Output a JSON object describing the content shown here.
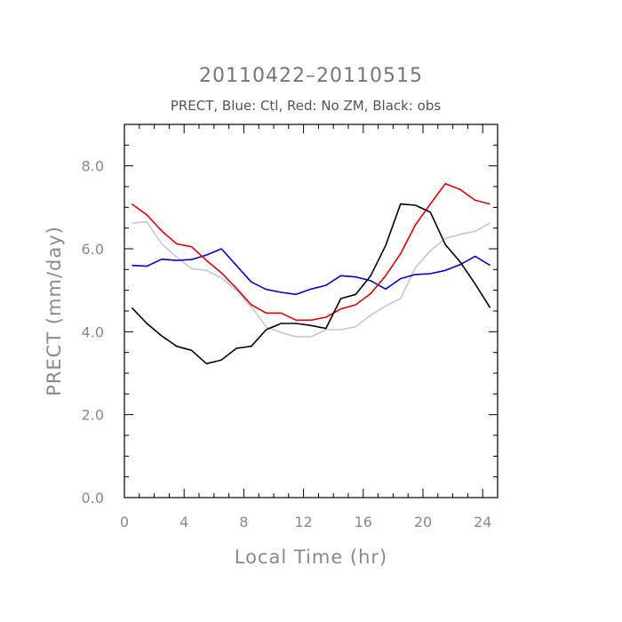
{
  "chart_data": {
    "type": "line",
    "title": "20110422–20110515",
    "subtitle": "PRECT, Blue: Ctl, Red: No ZM, Black: obs",
    "xlabel": "Local Time (hr)",
    "ylabel": "PRECT (mm/day)",
    "xlim": [
      0,
      25
    ],
    "ylim": [
      0,
      9
    ],
    "x_ticks": [
      0,
      4,
      8,
      12,
      16,
      20,
      24
    ],
    "x_tick_labels": [
      "0",
      "4",
      "8",
      "12",
      "16",
      "20",
      "24"
    ],
    "y_ticks": [
      0,
      2,
      4,
      6,
      8
    ],
    "y_tick_labels": [
      "0.0",
      "2.0",
      "4.0",
      "6.0",
      "8.0"
    ],
    "grid": false,
    "x": [
      0.5,
      1.5,
      2.5,
      3.5,
      4.5,
      5.5,
      6.5,
      7.5,
      8.5,
      9.5,
      10.5,
      11.5,
      12.5,
      13.5,
      14.5,
      15.5,
      16.5,
      17.5,
      18.5,
      19.5,
      20.5,
      21.5,
      22.5,
      23.5,
      24.5
    ],
    "series": [
      {
        "color": "#0000cc",
        "values": [
          5.6,
          5.58,
          5.75,
          5.72,
          5.74,
          5.85,
          6.0,
          5.6,
          5.2,
          5.02,
          4.95,
          4.9,
          5.03,
          5.12,
          5.35,
          5.32,
          5.23,
          5.03,
          5.28,
          5.38,
          5.4,
          5.48,
          5.62,
          5.82,
          5.6
        ]
      },
      {
        "color": "#e00000",
        "values": [
          7.08,
          6.82,
          6.43,
          6.12,
          6.05,
          5.72,
          5.42,
          5.05,
          4.65,
          4.45,
          4.45,
          4.28,
          4.28,
          4.35,
          4.55,
          4.65,
          4.92,
          5.35,
          5.88,
          6.58,
          7.08,
          7.57,
          7.43,
          7.17,
          7.08
        ]
      },
      {
        "color": "#000000",
        "values": [
          4.58,
          4.2,
          3.9,
          3.65,
          3.55,
          3.23,
          3.32,
          3.6,
          3.65,
          4.05,
          4.2,
          4.2,
          4.15,
          4.08,
          4.8,
          4.9,
          5.35,
          6.08,
          7.08,
          7.05,
          6.88,
          6.1,
          5.68,
          5.15,
          4.58
        ]
      },
      {
        "color": "#c8c8c8",
        "values": [
          6.62,
          6.65,
          6.12,
          5.8,
          5.52,
          5.48,
          5.3,
          5.0,
          4.6,
          4.12,
          3.98,
          3.88,
          3.88,
          4.05,
          4.05,
          4.12,
          4.4,
          4.62,
          4.8,
          5.55,
          5.95,
          6.25,
          6.35,
          6.42,
          6.62
        ]
      }
    ]
  }
}
